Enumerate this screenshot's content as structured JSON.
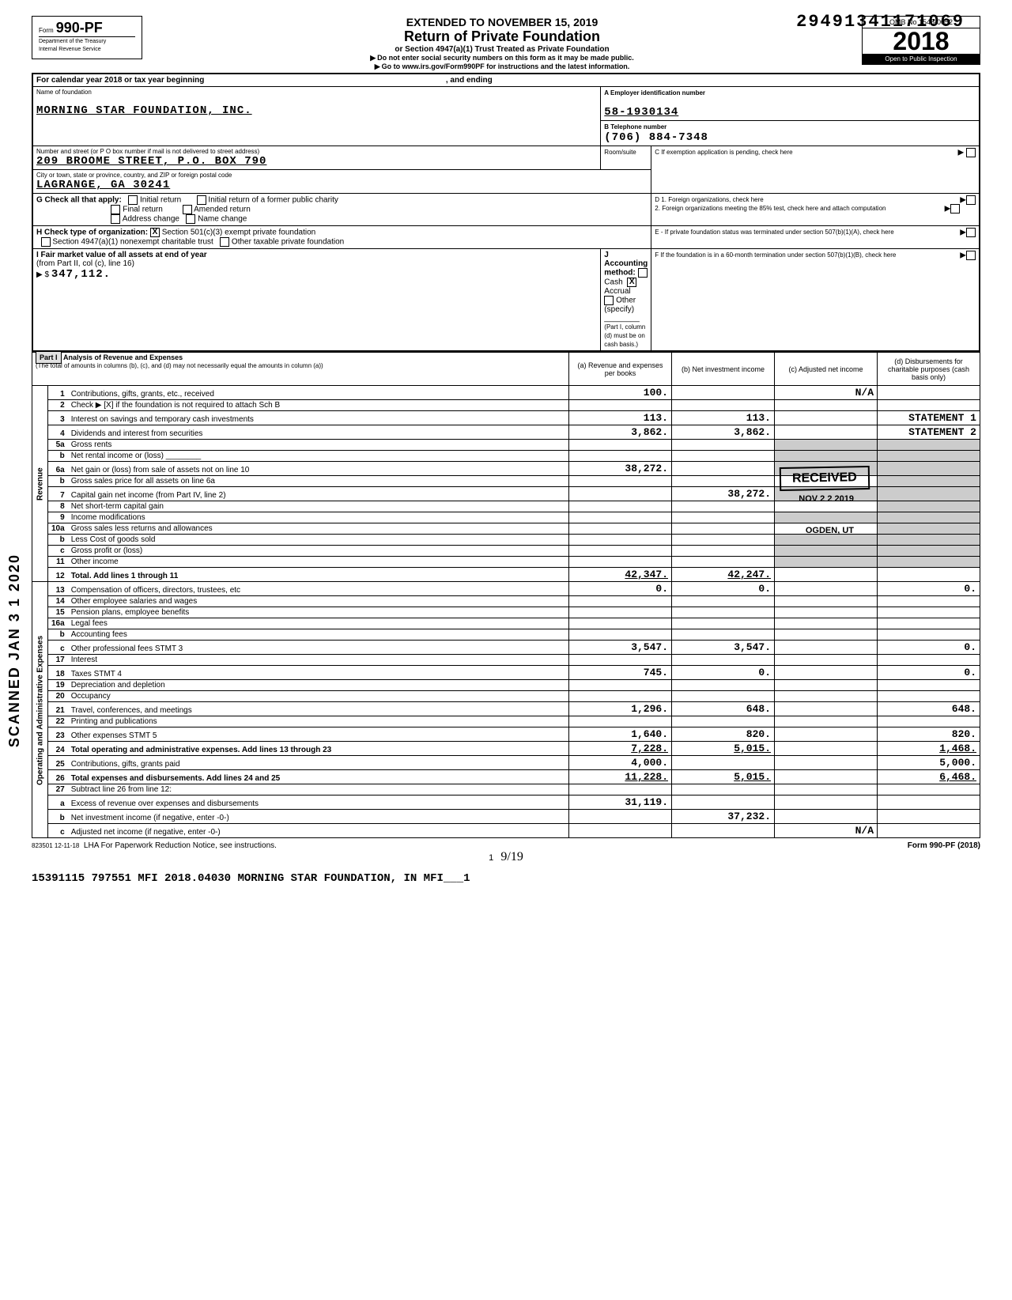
{
  "top_number": "29491341171069",
  "form": {
    "prefix": "Form",
    "number": "990-PF",
    "dept1": "Department of the Treasury",
    "dept2": "Internal Revenue Service"
  },
  "header": {
    "extended": "EXTENDED TO NOVEMBER 15, 2019",
    "title": "Return of Private Foundation",
    "sub1": "or Section 4947(a)(1) Trust Treated as Private Foundation",
    "sub2": "Do not enter social security numbers on this form as it may be made public.",
    "sub3": "Go to www.irs.gov/Form990PF for instructions and the latest information.",
    "omb": "OMB No 1545-0052",
    "year": "2018",
    "open": "Open to Public Inspection"
  },
  "cal": {
    "label": "For calendar year 2018 or tax year beginning",
    "ending": ", and ending"
  },
  "identity": {
    "name_label": "Name of foundation",
    "name": "MORNING STAR FOUNDATION, INC.",
    "addr_label": "Number and street (or P O box number if mail is not delivered to street address)",
    "addr": "209 BROOME STREET, P.O. BOX 790",
    "room_label": "Room/suite",
    "city_label": "City or town, state or province, country, and ZIP or foreign postal code",
    "city": "LAGRANGE, GA  30241",
    "ein_label": "A Employer identification number",
    "ein": "58-1930134",
    "tel_label": "B Telephone number",
    "tel": "(706) 884-7348",
    "c_label": "C If exemption application is pending, check here"
  },
  "g": {
    "label": "G Check all that apply:",
    "opts": [
      "Initial return",
      "Final return",
      "Address change",
      "Initial return of a former public charity",
      "Amended return",
      "Name change"
    ]
  },
  "h": {
    "label": "H Check type of organization:",
    "opt1": "Section 501(c)(3) exempt private foundation",
    "opt2": "Section 4947(a)(1) nonexempt charitable trust",
    "opt3": "Other taxable private foundation"
  },
  "i": {
    "label": "I Fair market value of all assets at end of year",
    "from": "(from Part II, col (c), line 16)",
    "amount": "347,112."
  },
  "j": {
    "label": "J Accounting method:",
    "cash": "Cash",
    "accrual": "Accrual",
    "other": "Other (specify)",
    "note": "(Part I, column (d) must be on cash basis.)"
  },
  "d": {
    "d1": "D 1. Foreign organizations, check here",
    "d2": "2. Foreign organizations meeting the 85% test, check here and attach computation"
  },
  "e": {
    "label": "E - If private foundation status was terminated under section 507(b)(1)(A), check here"
  },
  "f": {
    "label": "F If the foundation is in a 60-month termination under section 507(b)(1)(B), check here"
  },
  "part1": {
    "title": "Part I",
    "heading": "Analysis of Revenue and Expenses",
    "note": "(The total of amounts in columns (b), (c), and (d) may not necessarily equal the amounts in column (a))",
    "col_a": "(a) Revenue and expenses per books",
    "col_b": "(b) Net investment income",
    "col_c": "(c) Adjusted net income",
    "col_d": "(d) Disbursements for charitable purposes (cash basis only)"
  },
  "revenue_label": "Revenue",
  "opex_label": "Operating and Administrative Expenses",
  "rows": [
    {
      "n": "1",
      "desc": "Contributions, gifts, grants, etc., received",
      "a": "100.",
      "b": "",
      "c": "N/A",
      "d": ""
    },
    {
      "n": "2",
      "desc": "Check ▶ [X] if the foundation is not required to attach Sch B",
      "a": "",
      "b": "",
      "c": "",
      "d": ""
    },
    {
      "n": "3",
      "desc": "Interest on savings and temporary cash investments",
      "a": "113.",
      "b": "113.",
      "c": "",
      "d": "STATEMENT 1"
    },
    {
      "n": "4",
      "desc": "Dividends and interest from securities",
      "a": "3,862.",
      "b": "3,862.",
      "c": "",
      "d": "STATEMENT 2"
    },
    {
      "n": "5a",
      "desc": "Gross rents",
      "a": "",
      "b": "",
      "c": "",
      "d": ""
    },
    {
      "n": "b",
      "desc": "Net rental income or (loss) ________",
      "a": "",
      "b": "",
      "c": "",
      "d": ""
    },
    {
      "n": "6a",
      "desc": "Net gain or (loss) from sale of assets not on line 10",
      "a": "38,272.",
      "b": "",
      "c": "",
      "d": ""
    },
    {
      "n": "b",
      "desc": "Gross sales price for all assets on line 6a",
      "a": "",
      "b": "",
      "c": "RECEIVED",
      "d": ""
    },
    {
      "n": "7",
      "desc": "Capital gain net income (from Part IV, line 2)",
      "a": "",
      "b": "38,272.",
      "c": "",
      "d": ""
    },
    {
      "n": "8",
      "desc": "Net short-term capital gain",
      "a": "",
      "b": "",
      "c": "NOV 22 2019",
      "d": ""
    },
    {
      "n": "9",
      "desc": "Income modifications",
      "a": "",
      "b": "",
      "c": "",
      "d": ""
    },
    {
      "n": "10a",
      "desc": "Gross sales less returns and allowances",
      "a": "",
      "b": "",
      "c": "OGDEN, UT",
      "d": ""
    },
    {
      "n": "b",
      "desc": "Less Cost of goods sold",
      "a": "",
      "b": "",
      "c": "",
      "d": ""
    },
    {
      "n": "c",
      "desc": "Gross profit or (loss)",
      "a": "",
      "b": "",
      "c": "",
      "d": ""
    },
    {
      "n": "11",
      "desc": "Other income",
      "a": "",
      "b": "",
      "c": "",
      "d": ""
    },
    {
      "n": "12",
      "desc": "Total. Add lines 1 through 11",
      "a": "42,347.",
      "b": "42,247.",
      "c": "",
      "d": "",
      "bold": true
    },
    {
      "n": "13",
      "desc": "Compensation of officers, directors, trustees, etc",
      "a": "0.",
      "b": "0.",
      "c": "",
      "d": "0."
    },
    {
      "n": "14",
      "desc": "Other employee salaries and wages",
      "a": "",
      "b": "",
      "c": "",
      "d": ""
    },
    {
      "n": "15",
      "desc": "Pension plans, employee benefits",
      "a": "",
      "b": "",
      "c": "",
      "d": ""
    },
    {
      "n": "16a",
      "desc": "Legal fees",
      "a": "",
      "b": "",
      "c": "",
      "d": ""
    },
    {
      "n": "b",
      "desc": "Accounting fees",
      "a": "",
      "b": "",
      "c": "",
      "d": ""
    },
    {
      "n": "c",
      "desc": "Other professional fees          STMT 3",
      "a": "3,547.",
      "b": "3,547.",
      "c": "",
      "d": "0."
    },
    {
      "n": "17",
      "desc": "Interest",
      "a": "",
      "b": "",
      "c": "",
      "d": ""
    },
    {
      "n": "18",
      "desc": "Taxes                             STMT 4",
      "a": "745.",
      "b": "0.",
      "c": "",
      "d": "0."
    },
    {
      "n": "19",
      "desc": "Depreciation and depletion",
      "a": "",
      "b": "",
      "c": "",
      "d": ""
    },
    {
      "n": "20",
      "desc": "Occupancy",
      "a": "",
      "b": "",
      "c": "",
      "d": ""
    },
    {
      "n": "21",
      "desc": "Travel, conferences, and meetings",
      "a": "1,296.",
      "b": "648.",
      "c": "",
      "d": "648."
    },
    {
      "n": "22",
      "desc": "Printing and publications",
      "a": "",
      "b": "",
      "c": "",
      "d": ""
    },
    {
      "n": "23",
      "desc": "Other expenses                    STMT 5",
      "a": "1,640.",
      "b": "820.",
      "c": "",
      "d": "820."
    },
    {
      "n": "24",
      "desc": "Total operating and administrative expenses. Add lines 13 through 23",
      "a": "7,228.",
      "b": "5,015.",
      "c": "",
      "d": "1,468.",
      "bold": true
    },
    {
      "n": "25",
      "desc": "Contributions, gifts, grants paid",
      "a": "4,000.",
      "b": "",
      "c": "",
      "d": "5,000."
    },
    {
      "n": "26",
      "desc": "Total expenses and disbursements. Add lines 24 and 25",
      "a": "11,228.",
      "b": "5,015.",
      "c": "",
      "d": "6,468.",
      "bold": true
    },
    {
      "n": "27",
      "desc": "Subtract line 26 from line 12:",
      "a": "",
      "b": "",
      "c": "",
      "d": ""
    },
    {
      "n": "a",
      "desc": "Excess of revenue over expenses and disbursements",
      "a": "31,119.",
      "b": "",
      "c": "",
      "d": ""
    },
    {
      "n": "b",
      "desc": "Net investment income (if negative, enter -0-)",
      "a": "",
      "b": "37,232.",
      "c": "",
      "d": ""
    },
    {
      "n": "c",
      "desc": "Adjusted net income (if negative, enter -0-)",
      "a": "",
      "b": "",
      "c": "N/A",
      "d": ""
    }
  ],
  "footer": {
    "code": "823501 12-11-18",
    "lha": "LHA For Paperwork Reduction Notice, see instructions.",
    "formref": "Form 990-PF (2018)",
    "page": "1",
    "hand": "9/19"
  },
  "bottom": "15391115 797551 MFI         2018.04030 MORNING STAR FOUNDATION, IN MFI___1",
  "scanned": "SCANNED JAN 3 1 2020",
  "stamps": {
    "received": "RECEIVED",
    "date": "NOV 2 2 2019",
    "ogden": "OGDEN, UT"
  }
}
